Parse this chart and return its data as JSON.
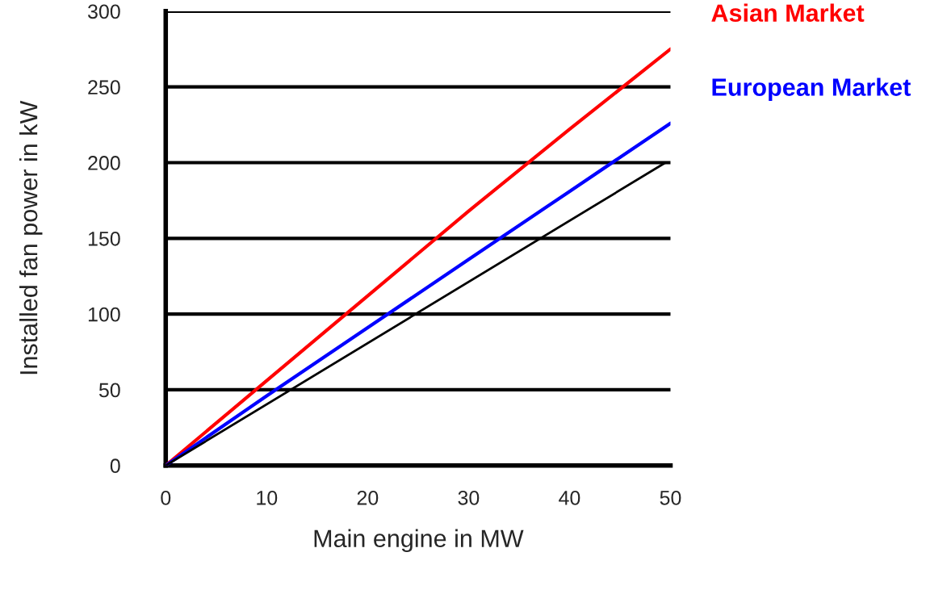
{
  "chart_data": {
    "type": "line",
    "xlabel": "Main engine in MW",
    "ylabel": "Installed fan power in kW",
    "xlim": [
      0,
      50
    ],
    "ylim": [
      0,
      300
    ],
    "xticks": [
      0,
      10,
      20,
      30,
      40,
      50
    ],
    "yticks": [
      0,
      50,
      100,
      150,
      200,
      250,
      300
    ],
    "grid": "y",
    "series": [
      {
        "name": "Asian Market",
        "color": "#ff0000",
        "x": [
          0,
          10,
          20,
          30,
          40,
          50
        ],
        "values": [
          0,
          56,
          112,
          168,
          222,
          275
        ]
      },
      {
        "name": "European Market",
        "color": "#0000ff",
        "x": [
          0,
          10,
          20,
          30,
          40,
          50
        ],
        "values": [
          0,
          46,
          91,
          136,
          181,
          226
        ]
      },
      {
        "color": "#000000",
        "x": [
          0,
          49.5
        ],
        "values": [
          0,
          200
        ]
      }
    ]
  }
}
